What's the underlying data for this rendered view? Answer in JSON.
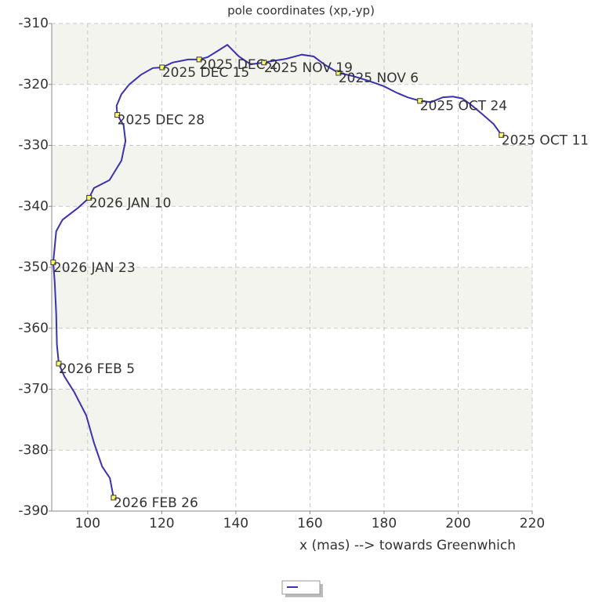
{
  "chart_data": {
    "type": "line",
    "title": "pole coordinates (xp,-yp)",
    "x_label": "x (mas) --> towards Greenwhich",
    "xlim": [
      90.3,
      220
    ],
    "xticks": [
      100,
      120,
      140,
      160,
      180,
      200,
      220
    ],
    "ylim": [
      -390,
      -310
    ],
    "yticks": [
      -310,
      -320,
      -330,
      -340,
      -350,
      -360,
      -370,
      -380,
      -390
    ],
    "grid": true,
    "alternating_bands": true,
    "series": [
      {
        "color": "#3b31b3",
        "x": [
          211.7,
          209.6,
          206.4,
          203.2,
          201.1,
          198.6,
          195.9,
          192.7,
          189.7,
          186.3,
          183.2,
          180.0,
          175.8,
          171.5,
          167.7,
          164.1,
          161.0,
          157.8,
          153.5,
          149.3,
          147.6,
          144.0,
          140.8,
          137.7,
          135.1,
          132.4,
          130.1,
          127.1,
          122.9,
          120.1,
          117.6,
          114.4,
          111.2,
          109.1,
          107.8,
          108.0,
          109.7,
          110.2,
          109.1,
          105.9,
          101.7,
          100.4,
          97.5,
          93.2,
          91.5,
          90.7,
          91.1,
          91.5,
          91.7,
          92.2,
          93.7,
          96.4,
          99.6,
          101.7,
          103.9,
          106.0,
          107.0
        ],
        "y": [
          -328.3,
          -326.5,
          -324.8,
          -323.2,
          -322.3,
          -322.0,
          -322.1,
          -322.9,
          -322.7,
          -322.1,
          -321.3,
          -320.3,
          -319.4,
          -318.6,
          -318.1,
          -316.8,
          -315.4,
          -315.1,
          -315.8,
          -316.2,
          -316.4,
          -316.7,
          -315.4,
          -313.5,
          -314.5,
          -315.5,
          -315.9,
          -315.9,
          -316.4,
          -317.2,
          -317.3,
          -318.4,
          -320.0,
          -321.6,
          -323.5,
          -325.0,
          -326.7,
          -329.3,
          -332.5,
          -335.7,
          -337.0,
          -338.6,
          -340.2,
          -342.2,
          -344.1,
          -349.2,
          -352.4,
          -357.6,
          -362.7,
          -365.8,
          -367.9,
          -370.5,
          -374.3,
          -378.8,
          -382.7,
          -384.6,
          -387.8
        ]
      }
    ],
    "annotations": [
      {
        "x": 211.7,
        "y": -328.3,
        "label": "2025 OCT 11"
      },
      {
        "x": 189.7,
        "y": -322.7,
        "label": "2025 OCT 24"
      },
      {
        "x": 167.7,
        "y": -318.1,
        "label": "2025 NOV 6"
      },
      {
        "x": 147.6,
        "y": -316.4,
        "label": "2025 NOV 19"
      },
      {
        "x": 130.1,
        "y": -315.9,
        "label": "2025 DEC 2"
      },
      {
        "x": 120.1,
        "y": -317.2,
        "label": "2025 DEC 15"
      },
      {
        "x": 108.0,
        "y": -325.0,
        "label": "2025 DEC 28"
      },
      {
        "x": 100.4,
        "y": -338.6,
        "label": "2026 JAN 10"
      },
      {
        "x": 90.7,
        "y": -349.2,
        "label": "2026 JAN 23"
      },
      {
        "x": 92.2,
        "y": -365.8,
        "label": "2026 FEB 5"
      },
      {
        "x": 107.0,
        "y": -387.8,
        "label": "2026 FEB 26"
      }
    ]
  }
}
